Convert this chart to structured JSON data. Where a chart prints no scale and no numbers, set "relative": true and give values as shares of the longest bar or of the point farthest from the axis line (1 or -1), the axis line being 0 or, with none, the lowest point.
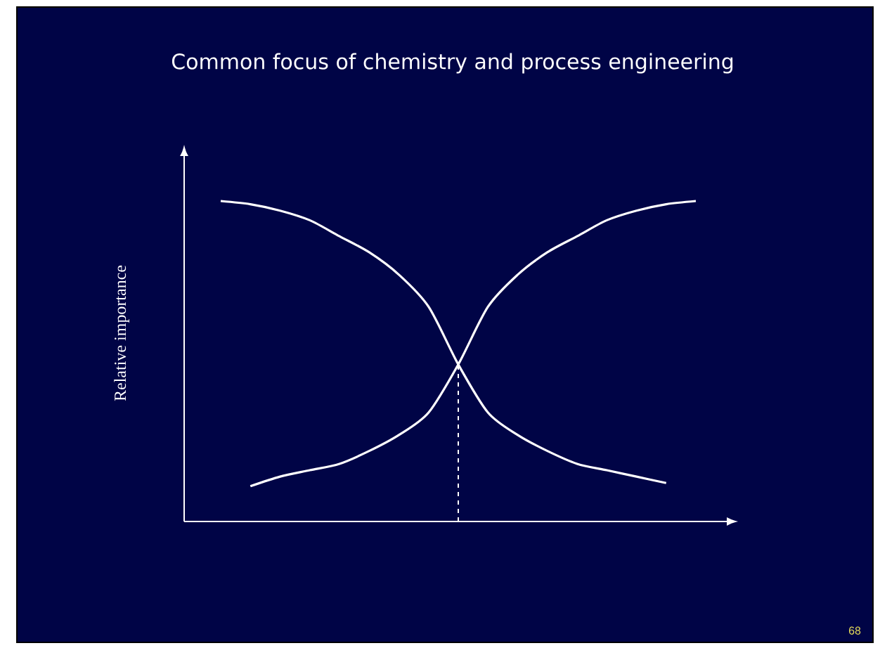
{
  "chart_data": {
    "type": "line",
    "relative": true,
    "title": "Common focus of chemistry and process engineering",
    "ylabel": "Relative importance",
    "categories": [
      null,
      null,
      null,
      null,
      null,
      null,
      null,
      null,
      null,
      null,
      null,
      null,
      null,
      null,
      null,
      null,
      null
    ],
    "series": [
      {
        "color": "#ffffff",
        "values": [
          1.0,
          0.99,
          0.97,
          0.94,
          0.89,
          0.84,
          0.77,
          0.67,
          0.49,
          0.34,
          0.27,
          0.22,
          0.18,
          0.16,
          0.14,
          0.12,
          null
        ]
      },
      {
        "color": "#ffffff",
        "values": [
          null,
          0.11,
          0.14,
          0.16,
          0.18,
          0.22,
          0.27,
          0.34,
          0.49,
          0.67,
          0.77,
          0.84,
          0.89,
          0.94,
          0.97,
          0.99,
          1.0
        ]
      }
    ],
    "marker": "none",
    "line_style": "solid",
    "annotations": [
      "68"
    ]
  }
}
